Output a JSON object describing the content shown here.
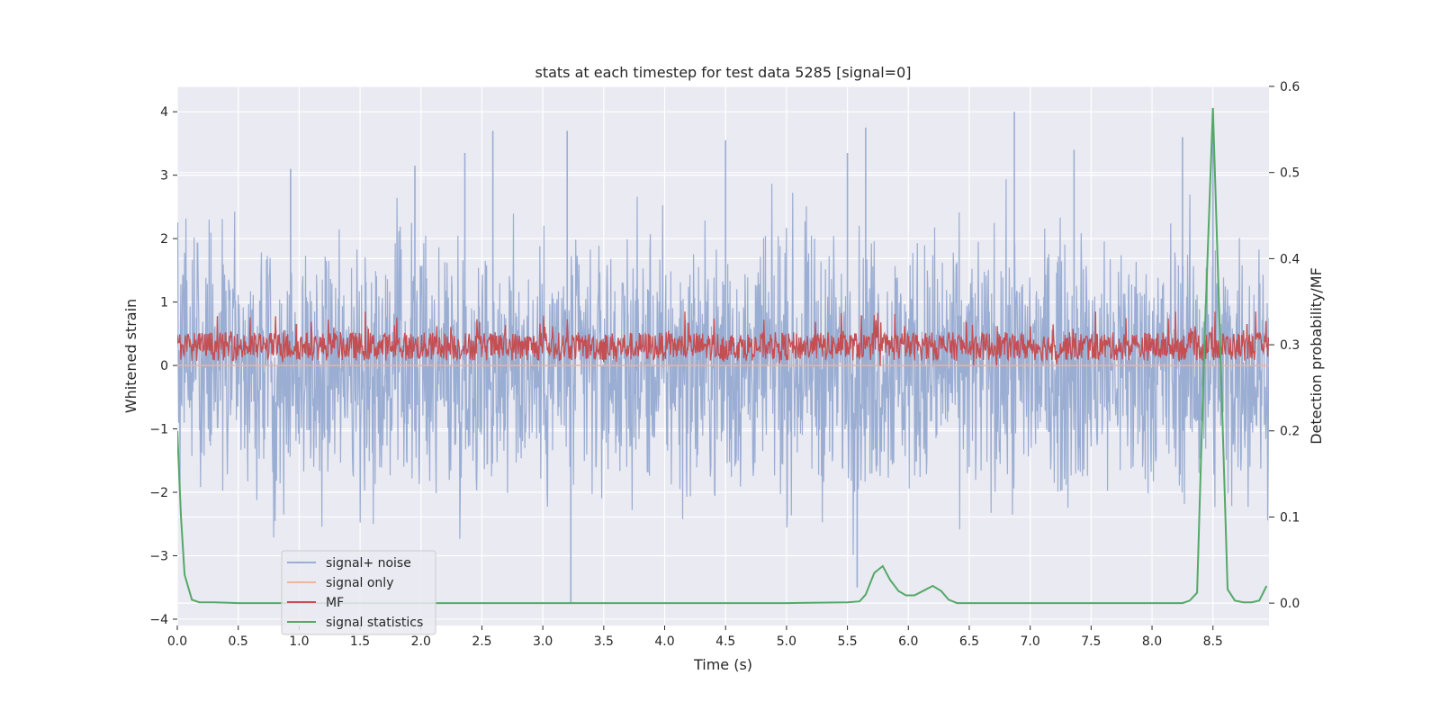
{
  "chart_data": {
    "type": "line",
    "title": "stats at each timestep for test data 5285 [signal=0]",
    "xlabel": "Time (s)",
    "ylabel": "Whitened strain",
    "y2label": "Detection probability/MF",
    "xlim": [
      0.0,
      8.96
    ],
    "ylim": [
      -4.1,
      4.4
    ],
    "y2lim": [
      -0.026,
      0.6
    ],
    "xticks": [
      0.0,
      0.5,
      1.0,
      1.5,
      2.0,
      2.5,
      3.0,
      3.5,
      4.0,
      4.5,
      5.0,
      5.5,
      6.0,
      6.5,
      7.0,
      7.5,
      8.0,
      8.5
    ],
    "xtick_labels": [
      "0.0",
      "0.5",
      "1.0",
      "1.5",
      "2.0",
      "2.5",
      "3.0",
      "3.5",
      "4.0",
      "4.5",
      "5.0",
      "5.5",
      "6.0",
      "6.5",
      "7.0",
      "7.5",
      "8.0",
      "8.5"
    ],
    "yticks": [
      -4,
      -3,
      -2,
      -1,
      0,
      1,
      2,
      3,
      4
    ],
    "ytick_labels": [
      "−4",
      "−3",
      "−2",
      "−1",
      "0",
      "1",
      "2",
      "3",
      "4"
    ],
    "y2ticks": [
      0.0,
      0.1,
      0.2,
      0.3,
      0.4,
      0.5,
      0.6
    ],
    "y2tick_labels": [
      "0.0",
      "0.1",
      "0.2",
      "0.3",
      "0.4",
      "0.5",
      "0.6"
    ],
    "grid": true,
    "legend_position": "lower-left",
    "series": [
      {
        "name": "signal+ noise",
        "color": "#9aadd2",
        "axis": "left",
        "description": "whitened strain noise, approx. amplitude ±2.5 with peaks to ±4",
        "amplitude": 1.0,
        "extremes": [
          {
            "x": 0.93,
            "y": 3.1
          },
          {
            "x": 1.95,
            "y": 3.15
          },
          {
            "x": 2.36,
            "y": 3.35
          },
          {
            "x": 2.59,
            "y": 3.7
          },
          {
            "x": 3.2,
            "y": 3.7
          },
          {
            "x": 3.23,
            "y": -3.75
          },
          {
            "x": 4.5,
            "y": 3.55
          },
          {
            "x": 5.5,
            "y": 3.35
          },
          {
            "x": 5.58,
            "y": -3.5
          },
          {
            "x": 5.65,
            "y": 3.75
          },
          {
            "x": 6.87,
            "y": 4.0
          },
          {
            "x": 7.36,
            "y": 3.4
          },
          {
            "x": 8.25,
            "y": 3.6
          },
          {
            "x": 8.5,
            "y": 3.7
          }
        ]
      },
      {
        "name": "signal only",
        "color": "#f0b49a",
        "axis": "left",
        "description": "flat line at zero",
        "constant": 0.0
      },
      {
        "name": "MF",
        "color": "#c44e52",
        "axis": "left",
        "description": "matched filter output fluctuating between 0 and ~0.85",
        "baseline": 0.3,
        "min": 0.0,
        "max": 0.85
      },
      {
        "name": "signal statistics",
        "color": "#55a868",
        "axis": "right",
        "x": [
          0.0,
          0.03,
          0.06,
          0.12,
          0.18,
          0.3,
          0.5,
          1.0,
          2.0,
          3.0,
          4.0,
          5.0,
          5.5,
          5.6,
          5.65,
          5.72,
          5.79,
          5.85,
          5.92,
          5.98,
          6.05,
          6.12,
          6.2,
          6.27,
          6.33,
          6.4,
          6.5,
          7.0,
          7.5,
          8.0,
          8.25,
          8.31,
          8.37,
          8.43,
          8.5,
          8.56,
          8.62,
          8.68,
          8.75,
          8.82,
          8.88,
          8.94
        ],
        "y": [
          0.2,
          0.1,
          0.033,
          0.004,
          0.001,
          0.001,
          0.0,
          0.0,
          0.0,
          0.0,
          0.0,
          0.0,
          0.001,
          0.002,
          0.01,
          0.035,
          0.043,
          0.027,
          0.014,
          0.009,
          0.009,
          0.014,
          0.02,
          0.014,
          0.004,
          0.0,
          0.0,
          0.0,
          0.0,
          0.0,
          0.0,
          0.003,
          0.012,
          0.3,
          0.575,
          0.3,
          0.016,
          0.003,
          0.001,
          0.001,
          0.003,
          0.02
        ]
      }
    ]
  }
}
